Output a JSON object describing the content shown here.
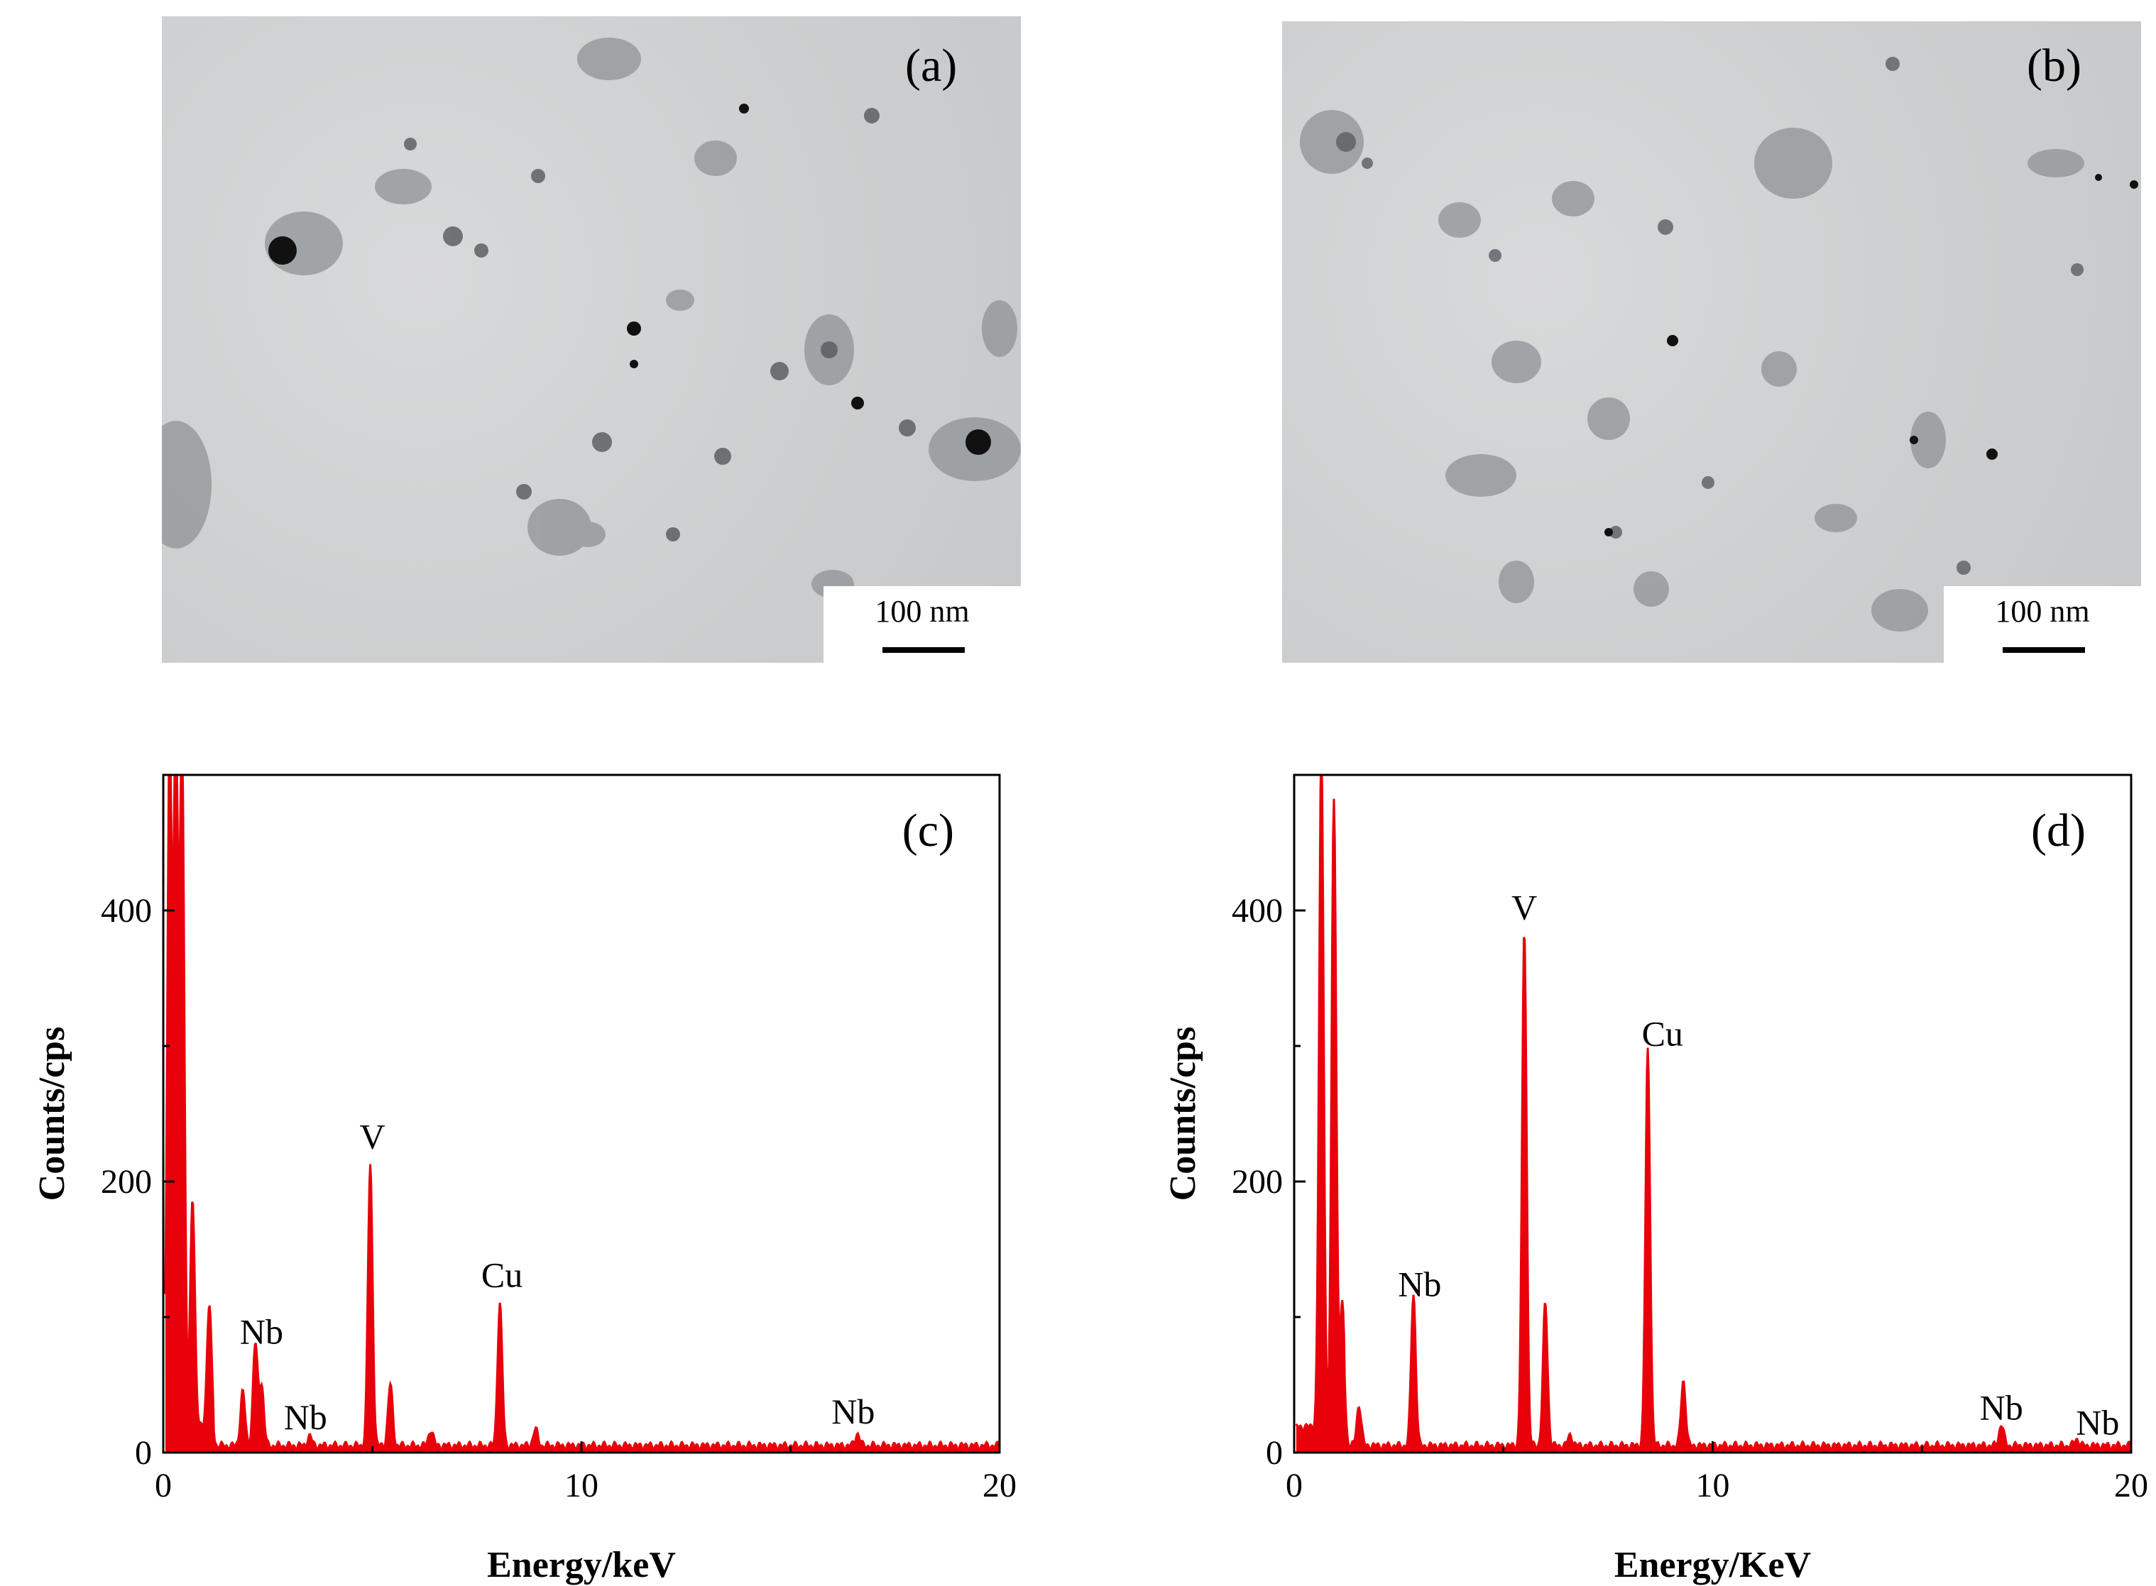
{
  "tem_images": [
    {
      "label": "(a)",
      "scale_bar": "100 nm"
    },
    {
      "label": "(b)",
      "scale_bar": "100 nm"
    }
  ],
  "chart_data": [
    {
      "type": "line",
      "panel_label": "(c)",
      "xlabel": "Energy/keV",
      "ylabel": "Counts/cps",
      "xlim": [
        0,
        20
      ],
      "ylim": [
        0,
        500
      ],
      "xticks": [
        0,
        10,
        20
      ],
      "yticks": [
        0,
        200,
        400
      ],
      "color": "#e8000b",
      "baseline": 5,
      "peaks": [
        {
          "x": 0.15,
          "y": 500
        },
        {
          "x": 0.3,
          "y": 500
        },
        {
          "x": 0.45,
          "y": 500
        },
        {
          "x": 0.7,
          "y": 170
        },
        {
          "x": 1.1,
          "y": 90
        },
        {
          "x": 1.9,
          "y": 40
        },
        {
          "x": 2.2,
          "y": 75
        },
        {
          "x": 2.35,
          "y": 45
        },
        {
          "x": 3.5,
          "y": 7
        },
        {
          "x": 4.95,
          "y": 207
        },
        {
          "x": 5.43,
          "y": 45
        },
        {
          "x": 6.4,
          "y": 12
        },
        {
          "x": 8.05,
          "y": 105
        },
        {
          "x": 8.9,
          "y": 12
        },
        {
          "x": 16.6,
          "y": 9
        }
      ],
      "annotations": [
        {
          "text": "Nb",
          "x": 2.35,
          "y": 72
        },
        {
          "text": "Nb",
          "x": 3.4,
          "y": 9
        },
        {
          "text": "V",
          "x": 5.0,
          "y": 216
        },
        {
          "text": "Cu",
          "x": 8.1,
          "y": 114
        },
        {
          "text": "Nb",
          "x": 16.5,
          "y": 13
        }
      ]
    },
    {
      "type": "line",
      "panel_label": "(d)",
      "xlabel": "Energy/KeV",
      "ylabel": "Counts/cps",
      "xlim": [
        0,
        20
      ],
      "ylim": [
        0,
        500
      ],
      "xticks": [
        0,
        10,
        20
      ],
      "yticks": [
        0,
        200,
        400
      ],
      "color": "#e8000b",
      "baseline": 5,
      "peaks": [
        {
          "x": 0.65,
          "y": 500
        },
        {
          "x": 0.95,
          "y": 465
        },
        {
          "x": 1.15,
          "y": 90
        },
        {
          "x": 1.55,
          "y": 30
        },
        {
          "x": 2.85,
          "y": 112
        },
        {
          "x": 5.5,
          "y": 380
        },
        {
          "x": 6.0,
          "y": 105
        },
        {
          "x": 6.6,
          "y": 8
        },
        {
          "x": 8.45,
          "y": 292
        },
        {
          "x": 9.3,
          "y": 48
        },
        {
          "x": 16.9,
          "y": 16
        },
        {
          "x": 18.7,
          "y": 5
        }
      ],
      "annotations": [
        {
          "text": "Nb",
          "x": 3.0,
          "y": 107
        },
        {
          "text": "V",
          "x": 5.5,
          "y": 385
        },
        {
          "text": "Cu",
          "x": 8.8,
          "y": 292
        },
        {
          "text": "Nb",
          "x": 16.9,
          "y": 16
        },
        {
          "text": "Nb",
          "x": 19.2,
          "y": 5
        }
      ]
    }
  ]
}
